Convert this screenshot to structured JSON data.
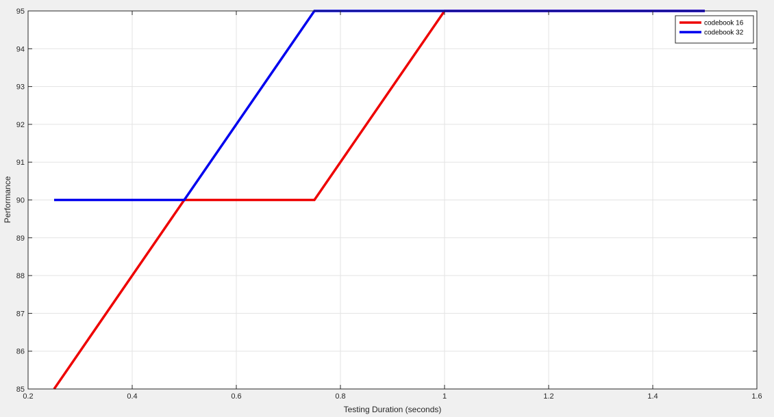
{
  "chart_data": {
    "type": "line",
    "title": "",
    "xlabel": "Testing Duration (seconds)",
    "ylabel": "Performance",
    "xlim": [
      0.2,
      1.6
    ],
    "ylim": [
      85,
      95
    ],
    "xticks": [
      "0.2",
      "0.4",
      "0.6",
      "0.8",
      "1",
      "1.2",
      "1.4",
      "1.6"
    ],
    "yticks": [
      "85",
      "86",
      "87",
      "88",
      "89",
      "90",
      "91",
      "92",
      "93",
      "94",
      "95"
    ],
    "grid": true,
    "legend_position": "top-right",
    "series": [
      {
        "name": "codebook 16",
        "color": "#ee0000",
        "x": [
          0.25,
          0.5,
          0.75,
          1.0,
          1.25,
          1.5
        ],
        "y": [
          85,
          90,
          90,
          95,
          95,
          95
        ]
      },
      {
        "name": "codebook 32",
        "color": "#0000ee",
        "x": [
          0.25,
          0.5,
          0.75,
          1.0,
          1.25,
          1.5
        ],
        "y": [
          90,
          90,
          95,
          95,
          95,
          95
        ]
      }
    ]
  }
}
